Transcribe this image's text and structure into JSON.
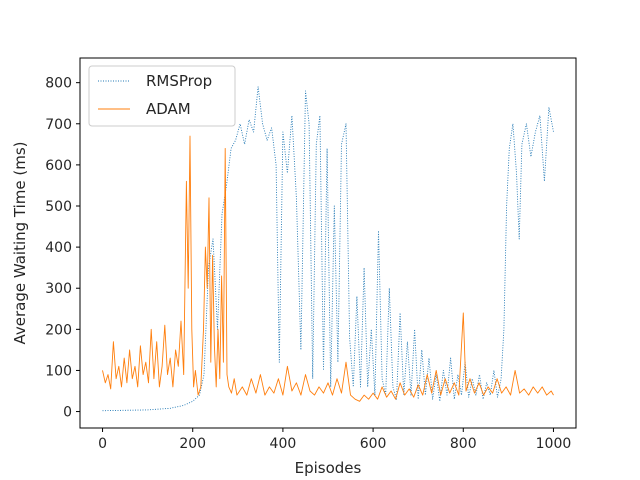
{
  "chart_data": {
    "type": "line",
    "title": "",
    "xlabel": "Episodes",
    "ylabel": "Average Waiting Time (ms)",
    "xlim": [
      -50,
      1050
    ],
    "ylim": [
      -40,
      860
    ],
    "x_ticks": [
      0,
      200,
      400,
      600,
      800,
      1000
    ],
    "y_ticks": [
      0,
      100,
      200,
      300,
      400,
      500,
      600,
      700,
      800
    ],
    "grid": false,
    "legend_position": "top-left",
    "series": [
      {
        "name": "RMSProp",
        "color": "#1f77b4",
        "style": "dotted",
        "points": [
          [
            0,
            2
          ],
          [
            50,
            3
          ],
          [
            100,
            4
          ],
          [
            150,
            8
          ],
          [
            180,
            15
          ],
          [
            200,
            25
          ],
          [
            215,
            40
          ],
          [
            225,
            90
          ],
          [
            235,
            350
          ],
          [
            245,
            420
          ],
          [
            255,
            200
          ],
          [
            265,
            480
          ],
          [
            275,
            550
          ],
          [
            285,
            640
          ],
          [
            295,
            660
          ],
          [
            305,
            700
          ],
          [
            315,
            650
          ],
          [
            325,
            710
          ],
          [
            335,
            680
          ],
          [
            345,
            790
          ],
          [
            355,
            700
          ],
          [
            365,
            660
          ],
          [
            375,
            690
          ],
          [
            385,
            600
          ],
          [
            392,
            120
          ],
          [
            400,
            680
          ],
          [
            410,
            580
          ],
          [
            420,
            720
          ],
          [
            430,
            520
          ],
          [
            440,
            150
          ],
          [
            450,
            780
          ],
          [
            458,
            700
          ],
          [
            466,
            80
          ],
          [
            474,
            650
          ],
          [
            482,
            720
          ],
          [
            490,
            100
          ],
          [
            498,
            640
          ],
          [
            506,
            60
          ],
          [
            514,
            500
          ],
          [
            522,
            120
          ],
          [
            530,
            650
          ],
          [
            540,
            700
          ],
          [
            548,
            180
          ],
          [
            556,
            60
          ],
          [
            564,
            280
          ],
          [
            572,
            60
          ],
          [
            580,
            350
          ],
          [
            588,
            60
          ],
          [
            596,
            200
          ],
          [
            604,
            40
          ],
          [
            612,
            440
          ],
          [
            620,
            80
          ],
          [
            628,
            40
          ],
          [
            636,
            300
          ],
          [
            644,
            60
          ],
          [
            652,
            30
          ],
          [
            660,
            240
          ],
          [
            668,
            40
          ],
          [
            676,
            170
          ],
          [
            684,
            40
          ],
          [
            692,
            200
          ],
          [
            700,
            30
          ],
          [
            708,
            150
          ],
          [
            716,
            40
          ],
          [
            724,
            130
          ],
          [
            732,
            30
          ],
          [
            740,
            90
          ],
          [
            748,
            25
          ],
          [
            756,
            100
          ],
          [
            764,
            40
          ],
          [
            772,
            130
          ],
          [
            780,
            30
          ],
          [
            788,
            90
          ],
          [
            796,
            40
          ],
          [
            804,
            120
          ],
          [
            812,
            35
          ],
          [
            820,
            80
          ],
          [
            828,
            40
          ],
          [
            836,
            90
          ],
          [
            844,
            30
          ],
          [
            852,
            70
          ],
          [
            860,
            40
          ],
          [
            868,
            100
          ],
          [
            876,
            35
          ],
          [
            884,
            80
          ],
          [
            890,
            200
          ],
          [
            896,
            500
          ],
          [
            902,
            640
          ],
          [
            910,
            700
          ],
          [
            918,
            580
          ],
          [
            924,
            420
          ],
          [
            930,
            650
          ],
          [
            940,
            700
          ],
          [
            950,
            620
          ],
          [
            960,
            680
          ],
          [
            970,
            720
          ],
          [
            980,
            560
          ],
          [
            990,
            740
          ],
          [
            1000,
            680
          ]
        ]
      },
      {
        "name": "ADAM",
        "color": "#ff7f0e",
        "style": "solid",
        "points": [
          [
            0,
            100
          ],
          [
            6,
            70
          ],
          [
            12,
            90
          ],
          [
            18,
            55
          ],
          [
            24,
            170
          ],
          [
            30,
            80
          ],
          [
            36,
            110
          ],
          [
            42,
            60
          ],
          [
            48,
            130
          ],
          [
            54,
            70
          ],
          [
            60,
            150
          ],
          [
            66,
            80
          ],
          [
            72,
            110
          ],
          [
            78,
            60
          ],
          [
            84,
            160
          ],
          [
            90,
            90
          ],
          [
            96,
            120
          ],
          [
            102,
            70
          ],
          [
            108,
            200
          ],
          [
            114,
            80
          ],
          [
            120,
            170
          ],
          [
            126,
            60
          ],
          [
            132,
            110
          ],
          [
            138,
            210
          ],
          [
            144,
            90
          ],
          [
            150,
            130
          ],
          [
            156,
            60
          ],
          [
            162,
            150
          ],
          [
            168,
            110
          ],
          [
            174,
            220
          ],
          [
            180,
            90
          ],
          [
            186,
            560
          ],
          [
            190,
            300
          ],
          [
            194,
            670
          ],
          [
            198,
            200
          ],
          [
            202,
            60
          ],
          [
            206,
            100
          ],
          [
            212,
            40
          ],
          [
            218,
            60
          ],
          [
            224,
            200
          ],
          [
            228,
            400
          ],
          [
            232,
            300
          ],
          [
            236,
            520
          ],
          [
            240,
            120
          ],
          [
            244,
            380
          ],
          [
            248,
            160
          ],
          [
            252,
            60
          ],
          [
            256,
            200
          ],
          [
            260,
            80
          ],
          [
            264,
            330
          ],
          [
            268,
            120
          ],
          [
            272,
            640
          ],
          [
            276,
            90
          ],
          [
            280,
            60
          ],
          [
            286,
            45
          ],
          [
            292,
            80
          ],
          [
            298,
            40
          ],
          [
            310,
            60
          ],
          [
            320,
            40
          ],
          [
            330,
            80
          ],
          [
            340,
            45
          ],
          [
            350,
            90
          ],
          [
            360,
            40
          ],
          [
            370,
            60
          ],
          [
            380,
            45
          ],
          [
            390,
            80
          ],
          [
            400,
            40
          ],
          [
            410,
            110
          ],
          [
            420,
            50
          ],
          [
            430,
            70
          ],
          [
            440,
            40
          ],
          [
            450,
            90
          ],
          [
            460,
            50
          ],
          [
            470,
            40
          ],
          [
            480,
            60
          ],
          [
            490,
            45
          ],
          [
            500,
            70
          ],
          [
            510,
            40
          ],
          [
            520,
            80
          ],
          [
            530,
            45
          ],
          [
            540,
            120
          ],
          [
            550,
            40
          ],
          [
            560,
            30
          ],
          [
            570,
            25
          ],
          [
            580,
            40
          ],
          [
            590,
            30
          ],
          [
            600,
            45
          ],
          [
            610,
            30
          ],
          [
            620,
            60
          ],
          [
            630,
            35
          ],
          [
            640,
            50
          ],
          [
            650,
            30
          ],
          [
            660,
            70
          ],
          [
            670,
            40
          ],
          [
            680,
            55
          ],
          [
            690,
            35
          ],
          [
            700,
            65
          ],
          [
            710,
            40
          ],
          [
            720,
            90
          ],
          [
            730,
            45
          ],
          [
            740,
            100
          ],
          [
            750,
            40
          ],
          [
            760,
            80
          ],
          [
            770,
            45
          ],
          [
            780,
            70
          ],
          [
            790,
            40
          ],
          [
            800,
            240
          ],
          [
            806,
            50
          ],
          [
            815,
            80
          ],
          [
            825,
            45
          ],
          [
            835,
            70
          ],
          [
            845,
            40
          ],
          [
            855,
            60
          ],
          [
            865,
            45
          ],
          [
            875,
            80
          ],
          [
            885,
            45
          ],
          [
            895,
            60
          ],
          [
            905,
            40
          ],
          [
            915,
            100
          ],
          [
            925,
            45
          ],
          [
            935,
            55
          ],
          [
            945,
            40
          ],
          [
            955,
            60
          ],
          [
            965,
            45
          ],
          [
            975,
            60
          ],
          [
            985,
            40
          ],
          [
            995,
            50
          ],
          [
            1000,
            40
          ]
        ]
      }
    ]
  }
}
